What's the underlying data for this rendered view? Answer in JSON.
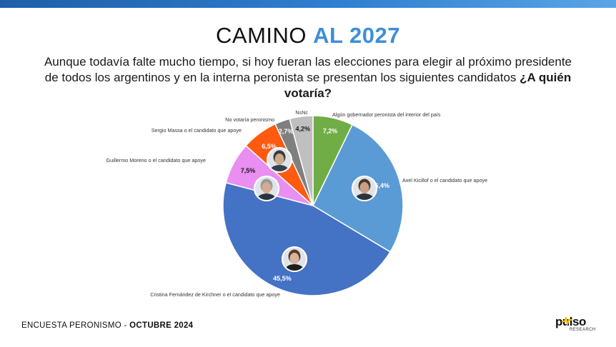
{
  "header": {
    "title_main": "CAMINO",
    "title_accent": "AL 2027",
    "question": "Aunque todavía falte mucho tiempo, si hoy fueran las elecciones para elegir al próximo presidente de todos los argentinos y en la interna peronista se presentan los siguientes candidatos",
    "question_bold": "¿A quién votaría?"
  },
  "chart_data": {
    "type": "pie",
    "title": "",
    "start": "top, clockwise",
    "slices": [
      {
        "label": "Algún gobernador peronista del interior del país",
        "value": 7.2,
        "value_label": "7,2%",
        "color": "#70ad47"
      },
      {
        "label": "Axel Kicillof o el candidato que apoye",
        "value": 26.4,
        "value_label": "26,4%",
        "color": "#5b9bd5"
      },
      {
        "label": "Cristina Fernández de Kirchner o el candidato que apoye",
        "value": 45.5,
        "value_label": "45,5%",
        "color": "#4472c4"
      },
      {
        "label": "Guillermo Moreno o el candidato que apoye",
        "value": 7.5,
        "value_label": "7,5%",
        "color": "#e98ff1"
      },
      {
        "label": "Sergio Massa o el candidato que apoye",
        "value": 6.5,
        "value_label": "6,5%",
        "color": "#ff5a0f"
      },
      {
        "label": "No votaría peronismo",
        "value": 2.7,
        "value_label": "2,7%",
        "color": "#7f7f7f"
      },
      {
        "label": "NsNc",
        "value": 4.2,
        "value_label": "4,2%",
        "color": "#bfbfbf"
      }
    ]
  },
  "footer": {
    "survey": "ENCUESTA PERONISMO - ",
    "date": "OCTUBRE 2024"
  },
  "logo": {
    "name": "pulso",
    "tagline": "RESEARCH"
  },
  "icons": [
    "candidate-photo-kicillof-icon",
    "candidate-photo-cristina-icon",
    "candidate-photo-moreno-icon",
    "candidate-photo-massa-icon"
  ]
}
